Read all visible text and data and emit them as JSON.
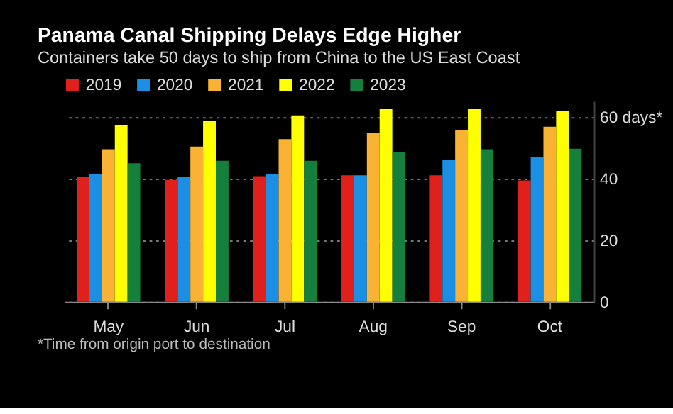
{
  "chart_data": {
    "type": "bar",
    "title": "Panama Canal Shipping Delays Edge Higher",
    "subtitle": "Containers take 50 days to ship from China to the US East Coast",
    "categories": [
      "May",
      "Jun",
      "Jul",
      "Aug",
      "Sep",
      "Oct"
    ],
    "series": [
      {
        "name": "2019",
        "color": "#e0201b",
        "values": [
          40.4,
          39.5,
          40.7,
          41,
          41,
          39.3
        ]
      },
      {
        "name": "2020",
        "color": "#1a8fe3",
        "values": [
          41.5,
          40.5,
          41.5,
          41,
          46,
          47
        ]
      },
      {
        "name": "2021",
        "color": "#f9b233",
        "values": [
          49.4,
          50.3,
          52.7,
          54.8,
          55.7,
          56.7
        ]
      },
      {
        "name": "2022",
        "color": "#ffff00",
        "values": [
          57.1,
          58.6,
          60.4,
          62.4,
          62.4,
          61.9
        ]
      },
      {
        "name": "2023",
        "color": "#14803c",
        "values": [
          44.9,
          45.7,
          45.7,
          48.4,
          49.4,
          49.6
        ]
      }
    ],
    "ylim": [
      0,
      65
    ],
    "yticks": [
      0,
      20,
      40,
      {
        "value": 60,
        "label": "60 days*"
      }
    ],
    "grid": "y",
    "legend": "top left",
    "annotations": [
      "*Time from origin port to destination"
    ]
  }
}
